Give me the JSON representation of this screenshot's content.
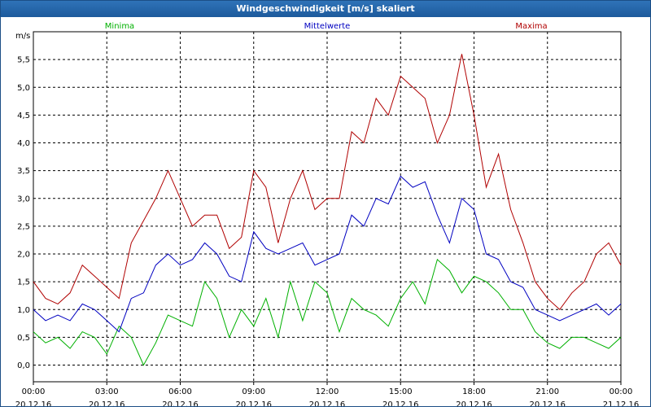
{
  "window": {
    "title": "Windgeschwindigkeit [m/s] skaliert"
  },
  "colors": {
    "min": "#00b000",
    "mean": "#0000c0",
    "max": "#b00000",
    "grid": "#000000",
    "axis": "#000000"
  },
  "chart_data": {
    "type": "line",
    "title": "Windgeschwindigkeit [m/s] skaliert",
    "ylabel": "m/s",
    "ylim": [
      -0.3,
      6.0
    ],
    "y_ticks": [
      "0,0",
      "0,5",
      "1,0",
      "1,5",
      "2,0",
      "2,5",
      "3,0",
      "3,5",
      "4,0",
      "4,5",
      "5,0",
      "5,5"
    ],
    "y_tick_values": [
      0,
      0.5,
      1,
      1.5,
      2,
      2.5,
      3,
      3.5,
      4,
      4.5,
      5,
      5.5
    ],
    "x_ticks": [
      {
        "time": "00:00",
        "date": "20.12.16"
      },
      {
        "time": "03:00",
        "date": "20.12.16"
      },
      {
        "time": "06:00",
        "date": "20.12.16"
      },
      {
        "time": "09:00",
        "date": "20.12.16"
      },
      {
        "time": "12:00",
        "date": "20.12.16"
      },
      {
        "time": "15:00",
        "date": "20.12.16"
      },
      {
        "time": "18:00",
        "date": "20.12.16"
      },
      {
        "time": "21:00",
        "date": "20.12.16"
      },
      {
        "time": "00:00",
        "date": "21.12.16"
      }
    ],
    "grid": true,
    "legend_position": "top",
    "x_hours": [
      0,
      0.5,
      1,
      1.5,
      2,
      2.5,
      3,
      3.5,
      4,
      4.5,
      5,
      5.5,
      6,
      6.5,
      7,
      7.5,
      8,
      8.5,
      9,
      9.5,
      10,
      10.5,
      11,
      11.5,
      12,
      12.5,
      13,
      13.5,
      14,
      14.5,
      15,
      15.5,
      16,
      16.5,
      17,
      17.5,
      18,
      18.5,
      19,
      19.5,
      20,
      20.5,
      21,
      21.5,
      22,
      22.5,
      23,
      23.5,
      24
    ],
    "series": [
      {
        "name": "Minima",
        "color": "#00b000",
        "values": [
          0.6,
          0.4,
          0.5,
          0.3,
          0.6,
          0.5,
          0.2,
          0.7,
          0.5,
          0.0,
          0.4,
          0.9,
          0.8,
          0.7,
          1.5,
          1.2,
          0.5,
          1.0,
          0.7,
          1.2,
          0.5,
          1.5,
          0.8,
          1.5,
          1.3,
          0.6,
          1.2,
          1.0,
          0.9,
          0.7,
          1.2,
          1.5,
          1.1,
          1.9,
          1.7,
          1.3,
          1.6,
          1.5,
          1.3,
          1.0,
          1.0,
          0.6,
          0.4,
          0.3,
          0.5,
          0.5,
          0.4,
          0.3,
          0.5
        ]
      },
      {
        "name": "Mittelwerte",
        "color": "#0000c0",
        "values": [
          1.0,
          0.8,
          0.9,
          0.8,
          1.1,
          1.0,
          0.8,
          0.6,
          1.2,
          1.3,
          1.8,
          2.0,
          1.8,
          1.9,
          2.2,
          2.0,
          1.6,
          1.5,
          2.4,
          2.1,
          2.0,
          2.1,
          2.2,
          1.8,
          1.9,
          2.0,
          2.7,
          2.5,
          3.0,
          2.9,
          3.4,
          3.2,
          3.3,
          2.7,
          2.2,
          3.0,
          2.8,
          2.0,
          1.9,
          1.5,
          1.4,
          1.0,
          0.9,
          0.8,
          0.9,
          1.0,
          1.1,
          0.9,
          1.1
        ]
      },
      {
        "name": "Maxima",
        "color": "#b00000",
        "values": [
          1.5,
          1.2,
          1.1,
          1.3,
          1.8,
          1.6,
          1.4,
          1.2,
          2.2,
          2.6,
          3.0,
          3.5,
          3.0,
          2.5,
          2.7,
          2.7,
          2.1,
          2.3,
          3.5,
          3.2,
          2.2,
          3.0,
          3.5,
          2.8,
          3.0,
          3.0,
          4.2,
          4.0,
          4.8,
          4.5,
          5.2,
          5.0,
          4.8,
          4.0,
          4.5,
          5.6,
          4.5,
          3.2,
          3.8,
          2.8,
          2.2,
          1.5,
          1.2,
          1.0,
          1.3,
          1.5,
          2.0,
          2.2,
          1.8
        ]
      }
    ]
  }
}
